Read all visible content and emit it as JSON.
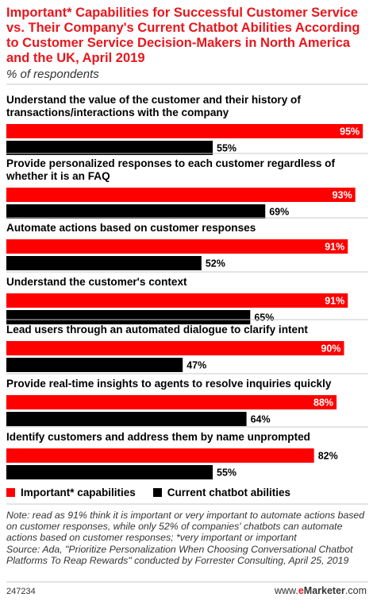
{
  "header": {
    "title": "Important* Capabilities for Successful Customer Service vs. Their Company's Current Chatbot Abilities According to Customer Service Decision-Makers in North America and the UK, April 2019",
    "subtitle": "% of respondents"
  },
  "colors": {
    "important": "#ff0000",
    "current": "#000000",
    "accent": "#e8171d"
  },
  "chart_data": {
    "type": "bar",
    "orientation": "horizontal",
    "title": "Important* Capabilities for Successful Customer Service vs. Their Company's Current Chatbot Abilities According to Customer Service Decision-Makers in North America and the UK, April 2019",
    "subtitle": "% of respondents",
    "categories": [
      [
        "Understand the value of the customer and their history of",
        "transactions/interactions with the company"
      ],
      [
        "Provide personalized responses to each customer regardless of",
        "whether it is an FAQ"
      ],
      [
        "Automate actions based on customer responses"
      ],
      [
        "Understand the customer's context"
      ],
      [
        "Lead users through an automated dialogue to clarify intent"
      ],
      [
        "Provide real-time insights to agents to resolve inquiries quickly"
      ],
      [
        "Identify customers and address them by name unprompted"
      ]
    ],
    "series": [
      {
        "name": "Important* capabilities",
        "color": "#ff0000",
        "values": [
          95,
          93,
          91,
          91,
          90,
          88,
          82
        ],
        "labels": [
          "95%",
          "93%",
          "91%",
          "91%",
          "90%",
          "88%",
          "82%"
        ]
      },
      {
        "name": "Current chatbot abilities",
        "color": "#000000",
        "values": [
          55,
          69,
          52,
          65,
          47,
          64,
          55
        ],
        "labels": [
          "55%",
          "69%",
          "52%",
          "65%",
          "47%",
          "64%",
          "55%"
        ]
      }
    ],
    "xlim": [
      0,
      100
    ],
    "legend": "bottom"
  },
  "legend": {
    "important": "Important* capabilities",
    "current": "Current chatbot abilities"
  },
  "footer": {
    "note": "Note: read as 91% think it is important or very important to automate actions based on customer responses, while only 52% of companies' chatbots can automate actions based on customer responses; *very important or important",
    "source": "Source: Ada, \"Prioritize Personalization When Choosing Conversational Chatbot Platforms To Reap Rewards\" conducted by Forrester Consulting, April 25, 2019",
    "chart_id": "247234",
    "brand_prefix": "www.",
    "brand_e": "e",
    "brand_name": "Marketer",
    "brand_suffix": ".com"
  }
}
